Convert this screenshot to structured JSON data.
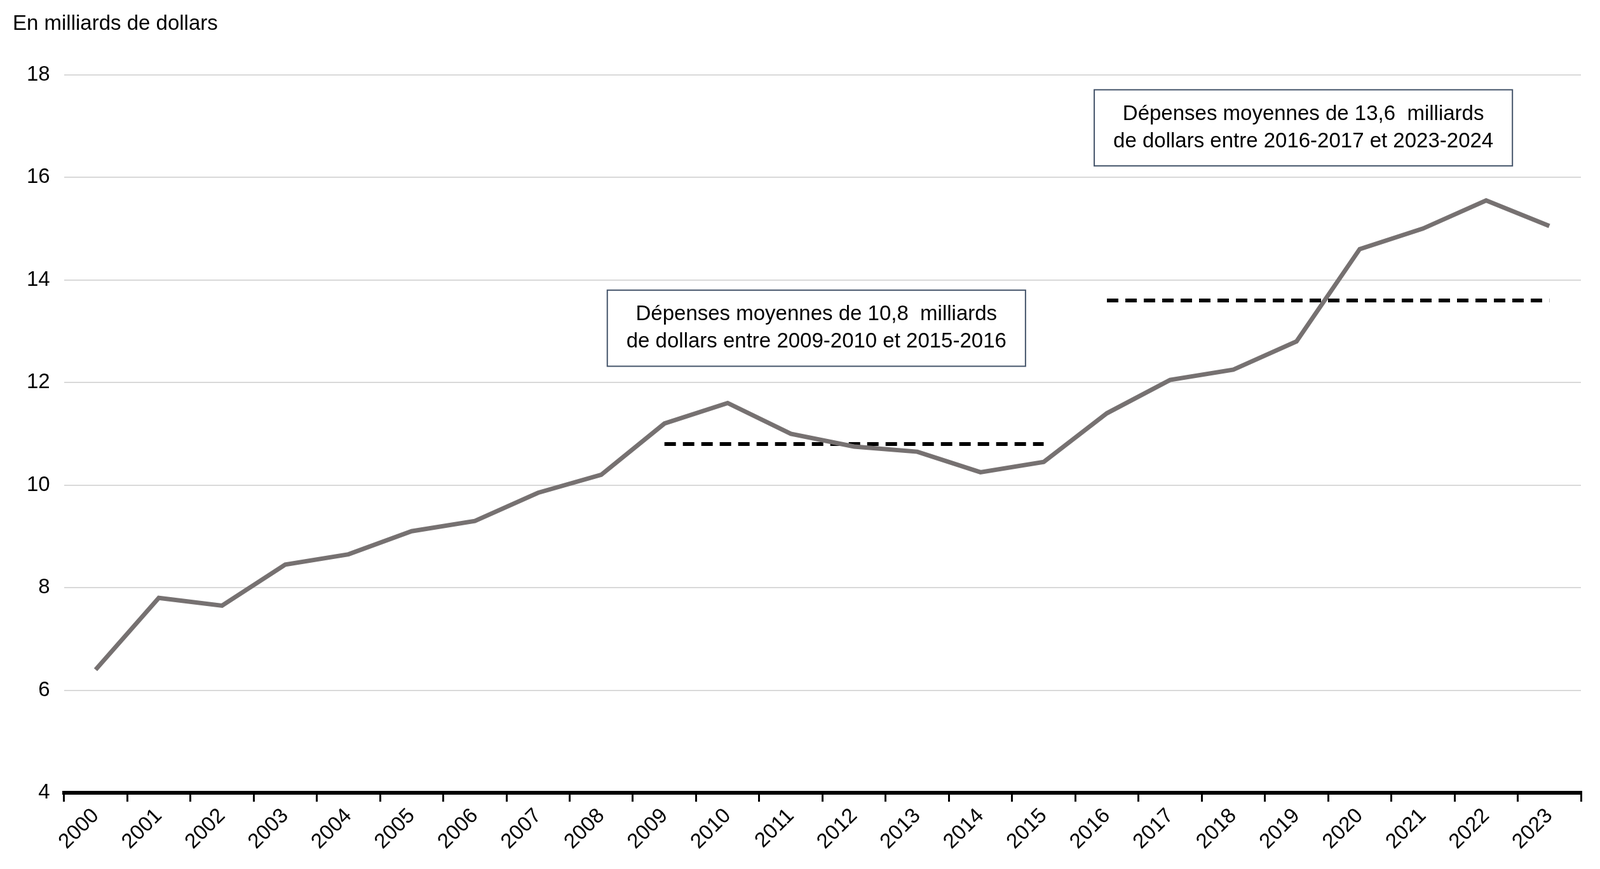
{
  "chart_data": {
    "type": "line",
    "y_label": "En milliards de dollars",
    "categories": [
      "2000",
      "2001",
      "2002",
      "2003",
      "2004",
      "2005",
      "2006",
      "2007",
      "2008",
      "2009",
      "2010",
      "2011",
      "2012",
      "2013",
      "2014",
      "2015",
      "2016",
      "2017",
      "2018",
      "2019",
      "2020",
      "2021",
      "2022",
      "2023"
    ],
    "series": [
      {
        "color": "#767171",
        "line_style": "solid",
        "values": [
          6.4,
          7.8,
          7.65,
          8.45,
          8.65,
          9.1,
          9.3,
          9.85,
          10.2,
          11.2,
          11.6,
          11.0,
          10.75,
          10.65,
          10.25,
          10.45,
          11.4,
          12.05,
          12.25,
          12.8,
          14.6,
          15.0,
          15.55,
          15.05
        ]
      },
      {
        "color": "#000000",
        "line_style": "dashed",
        "values": [
          null,
          null,
          null,
          null,
          null,
          null,
          null,
          null,
          null,
          10.8,
          10.8,
          10.8,
          10.8,
          10.8,
          10.8,
          10.8,
          null,
          null,
          null,
          null,
          null,
          null,
          null,
          null
        ],
        "annotation": [
          "Dépenses moyennes de 10,8  milliards",
          "de dollars entre 2009-2010 et 2015-2016"
        ]
      },
      {
        "color": "#000000",
        "line_style": "dashed",
        "values": [
          null,
          null,
          null,
          null,
          null,
          null,
          null,
          null,
          null,
          null,
          null,
          null,
          null,
          null,
          null,
          null,
          13.6,
          13.6,
          13.6,
          13.6,
          13.6,
          13.6,
          13.6,
          13.6
        ],
        "annotation": [
          "Dépenses moyennes de 13,6  milliards",
          "de dollars entre 2016-2017 et 2023-2024"
        ]
      }
    ],
    "ylim": [
      4,
      18
    ],
    "yticks": [
      4,
      6,
      8,
      10,
      12,
      14,
      16,
      18
    ],
    "grid": true
  }
}
